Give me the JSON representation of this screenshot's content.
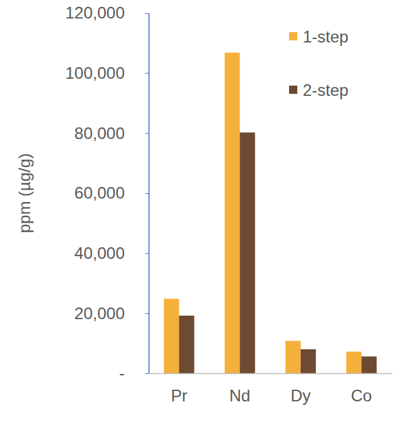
{
  "chart_data": {
    "type": "bar",
    "ylabel": "ppm (µg/g)",
    "categories": [
      "Pr",
      "Nd",
      "Dy",
      "Co"
    ],
    "series": [
      {
        "name": "1-step",
        "color": "#f5b03c",
        "values": [
          24800,
          106800,
          10800,
          7200
        ]
      },
      {
        "name": "2-step",
        "color": "#6e4a32",
        "values": [
          19200,
          80200,
          8000,
          5600
        ]
      }
    ],
    "ylim": [
      0,
      120000
    ],
    "yticks": [
      {
        "value": 0,
        "label": "-"
      },
      {
        "value": 20000,
        "label": "20,000"
      },
      {
        "value": 40000,
        "label": "40,000"
      },
      {
        "value": 60000,
        "label": "60,000"
      },
      {
        "value": 80000,
        "label": "80,000"
      },
      {
        "value": 100000,
        "label": "100,000"
      },
      {
        "value": 120000,
        "label": "120,000"
      }
    ],
    "legend": "upper right",
    "grid": false
  }
}
